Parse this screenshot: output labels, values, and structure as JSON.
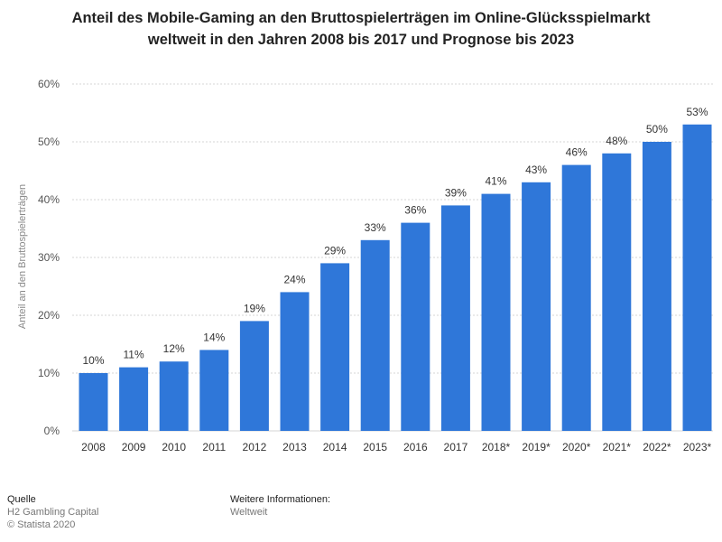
{
  "chart_data": {
    "type": "bar",
    "title_line1": "Anteil des Mobile-Gaming an den Bruttospielerträgen im Online-Glücksspielmarkt",
    "title_line2": "weltweit in den Jahren 2008 bis 2017 und Prognose bis 2023",
    "ylabel": "Anteil an den Bruttospielerträgen",
    "xlabel": "",
    "ylim": [
      0,
      60
    ],
    "yticks": [
      0,
      10,
      20,
      30,
      40,
      50,
      60
    ],
    "ytick_labels": [
      "0%",
      "10%",
      "20%",
      "30%",
      "40%",
      "50%",
      "60%"
    ],
    "categories": [
      "2008",
      "2009",
      "2010",
      "2011",
      "2012",
      "2013",
      "2014",
      "2015",
      "2016",
      "2017",
      "2018*",
      "2019*",
      "2020*",
      "2021*",
      "2022*",
      "2023*"
    ],
    "values": [
      10,
      11,
      12,
      14,
      19,
      24,
      29,
      33,
      36,
      39,
      41,
      43,
      46,
      48,
      50,
      53
    ],
    "value_labels": [
      "10%",
      "11%",
      "12%",
      "14%",
      "19%",
      "24%",
      "29%",
      "33%",
      "36%",
      "39%",
      "41%",
      "43%",
      "46%",
      "48%",
      "50%",
      "53%"
    ],
    "bar_color": "#2f77d9",
    "grid": true
  },
  "footer": {
    "source_heading": "Quelle",
    "source_line1": "H2 Gambling Capital",
    "source_line2": "© Statista 2020",
    "info_heading": "Weitere Informationen:",
    "info_line1": "Weltweit"
  }
}
